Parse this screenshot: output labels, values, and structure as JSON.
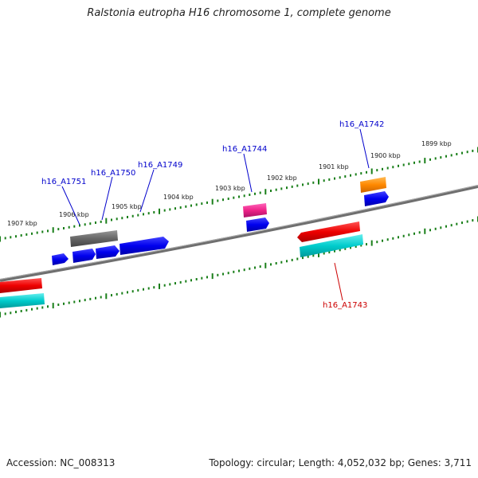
{
  "title": "Ralstonia eutropha H16 chromosome 1, complete genome",
  "footer": {
    "accession": "Accession: NC_008313",
    "summary": "Topology: circular; Length: 4,052,032 bp; Genes: 3,711"
  },
  "kbp_labels": [
    "1899 kbp",
    "1900 kbp",
    "1901 kbp",
    "1902 kbp",
    "1903 kbp",
    "1904 kbp",
    "1905 kbp",
    "1906 kbp",
    "1907 kbp"
  ],
  "gene_labels": [
    "h16_A1742",
    "h16_A1744",
    "h16_A1749",
    "h16_A1750",
    "h16_A1751",
    "h16_A1743"
  ],
  "colors": {
    "forward_label": "#0000cc",
    "reverse_label": "#cc0000",
    "ticks": "#1a7f1a",
    "backbone": "#7a7a7a",
    "cds_blue": "#0000ee",
    "cds_red": "#ee0000",
    "cds_cyan": "#00cccc",
    "cds_grey": "#666666",
    "cds_orange": "#ff8800",
    "cds_pink": "#ee2288"
  }
}
